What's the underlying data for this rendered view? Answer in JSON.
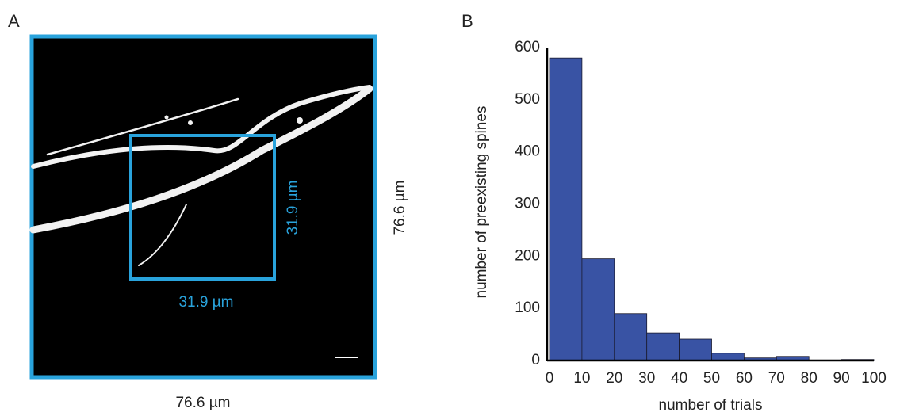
{
  "panel_a": {
    "label": "A",
    "inner_width": "31.9 µm",
    "inner_height": "31.9 µm",
    "outer_width": "76.6 µm",
    "outer_height": "76.6 µm"
  },
  "chart_data": {
    "type": "histogram",
    "panel_label": "B",
    "x_label": "number of trials",
    "y_label": "number of preexisting spines",
    "bins": [
      0,
      10,
      20,
      30,
      40,
      50,
      60,
      70,
      80,
      90,
      100
    ],
    "values": [
      580,
      195,
      90,
      53,
      41,
      14,
      5,
      8,
      1,
      2
    ],
    "color": "#3953a4",
    "xlim": [
      0,
      100
    ],
    "xticks": [
      0,
      10,
      20,
      30,
      40,
      50,
      60,
      70,
      80,
      90,
      100
    ],
    "ylim": [
      0,
      600
    ],
    "yticks": [
      0,
      100,
      200,
      300,
      400,
      500,
      600
    ]
  }
}
